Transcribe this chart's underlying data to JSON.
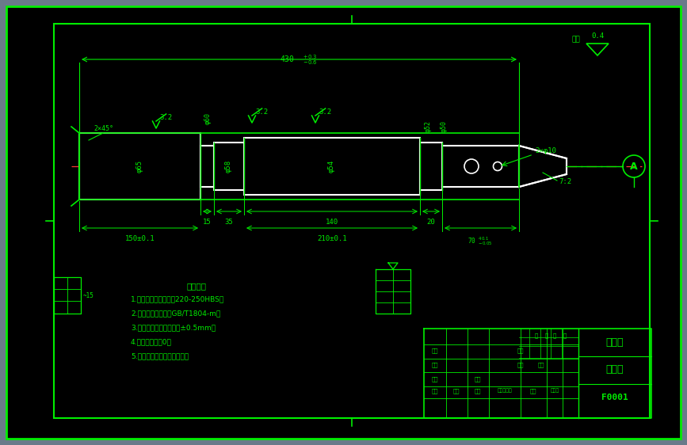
{
  "bg_outer": "#6a7a8a",
  "bg_inner": "#000000",
  "line_color": "#00ee00",
  "center_line_color": "#ff3333",
  "white_line": "#ffffff",
  "notes": [
    "技术要求",
    "1.锁紧处理后表面硬度220-250HBS；",
    "2.未标注尺寸公差为GB/T1804-m；",
    "3.未注长度尺寸允许偏差±0.5mm；",
    "4.未注图角半径0；",
    "5.加工后零件不允许有毛刺。"
  ],
  "tb_texts": [
    "双天字",
    "设计图",
    "F0001"
  ]
}
